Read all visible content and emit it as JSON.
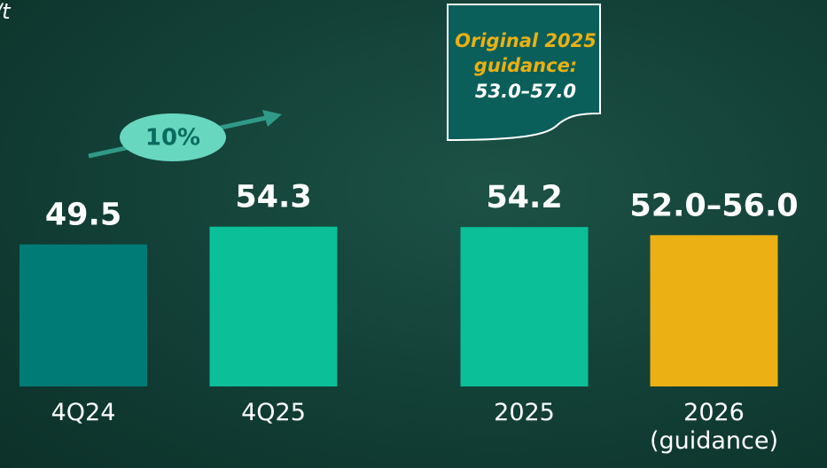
{
  "chart_data": {
    "type": "bar",
    "unit": "/t",
    "categories": [
      "4Q24",
      "4Q25",
      "2025",
      "2026 (guidance)"
    ],
    "values": [
      49.5,
      54.3,
      54.2,
      52.0
    ],
    "value_labels": [
      "49.5",
      "54.3",
      "54.2",
      "52.0–56.0"
    ],
    "colors": [
      "#017b76",
      "#0bbf98",
      "#0bbf98",
      "#ebb013"
    ],
    "ylim": [
      11,
      60
    ],
    "annotations": [
      {
        "lines": [
          "Original 2025",
          "guidance:",
          "53.0–57.0"
        ]
      },
      {
        "text": "10%"
      }
    ]
  }
}
